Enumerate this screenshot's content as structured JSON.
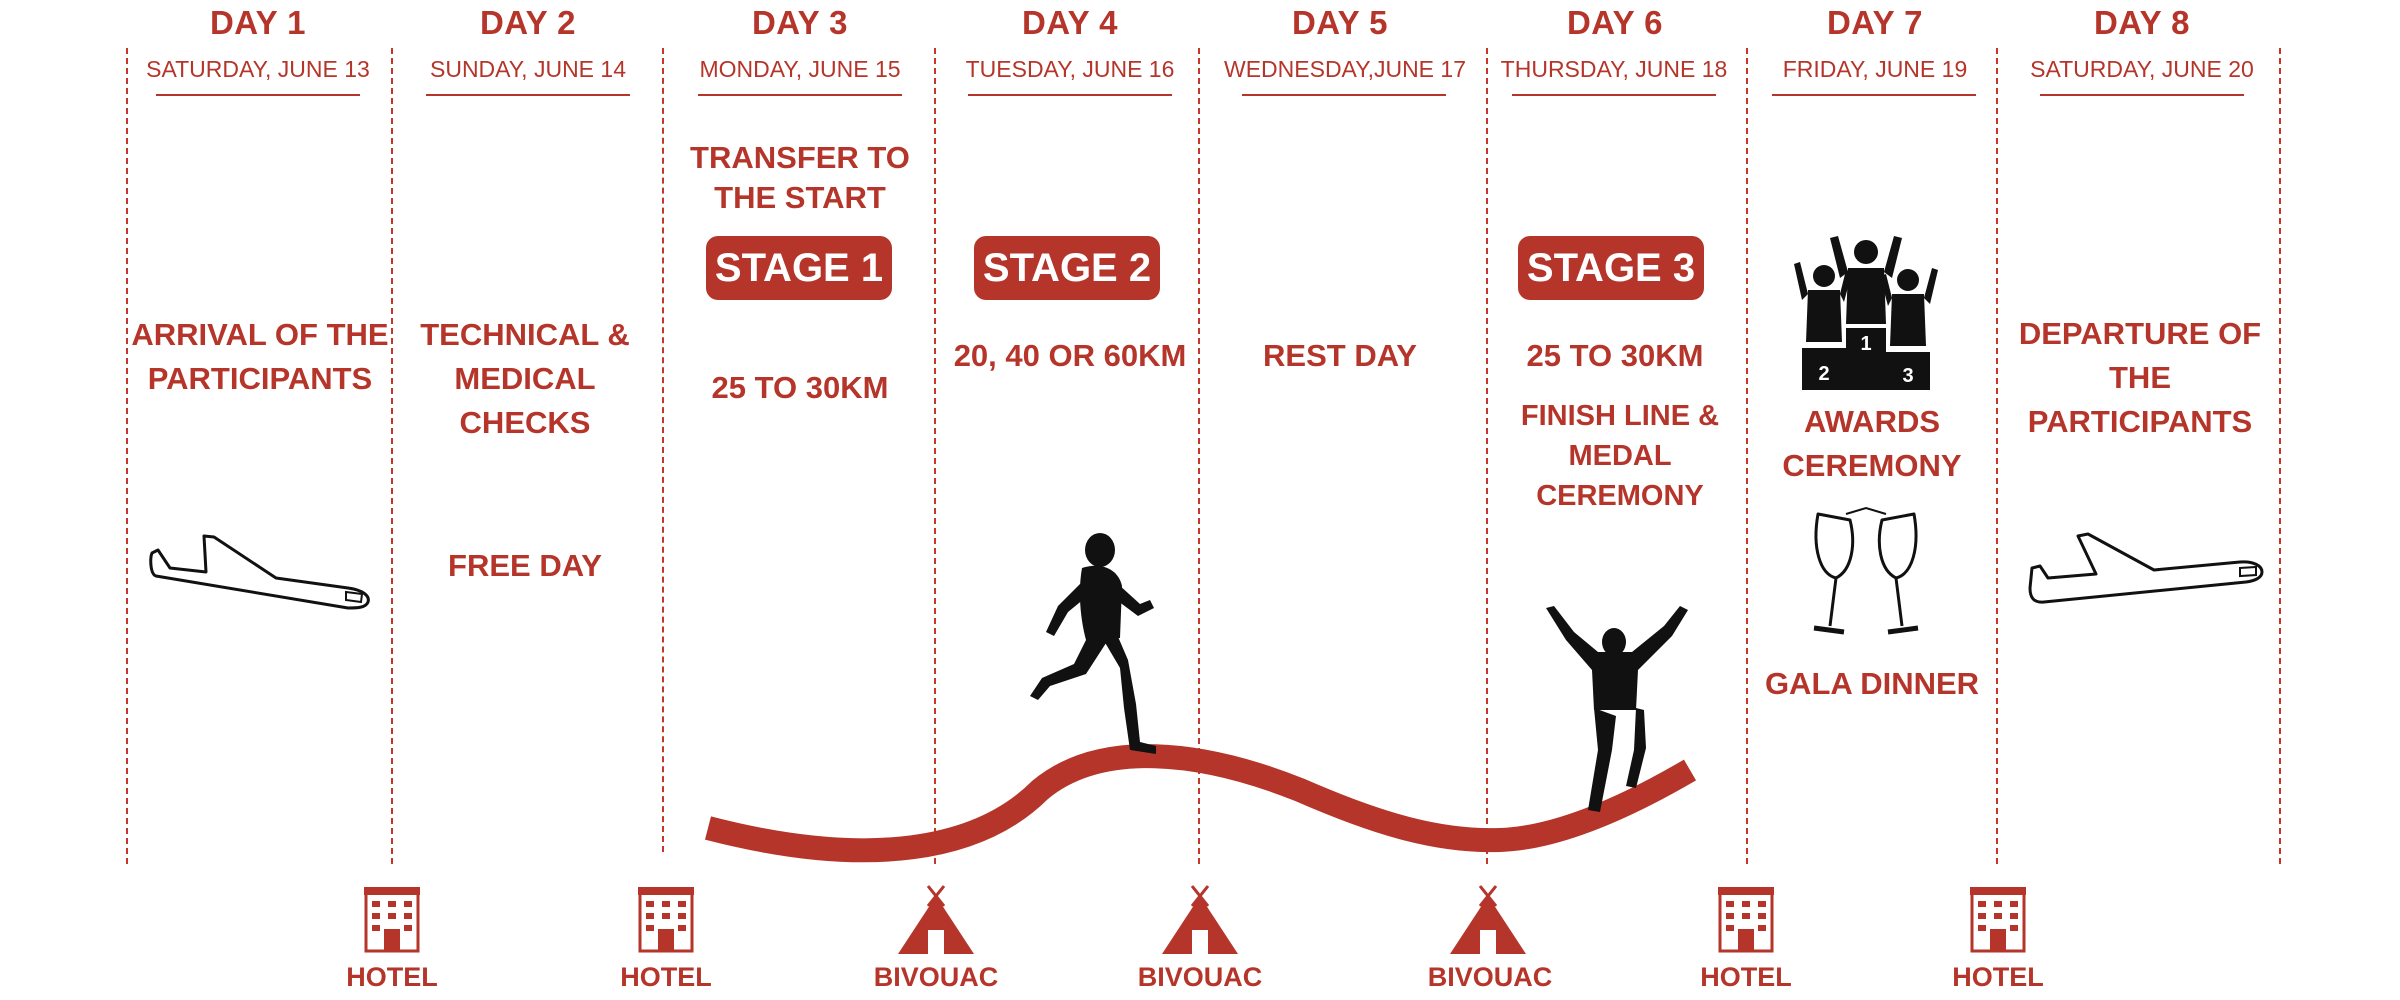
{
  "days": [
    {
      "title": "DAY 1",
      "date": "SATURDAY, JUNE 13"
    },
    {
      "title": "DAY 2",
      "date": "SUNDAY, JUNE 14"
    },
    {
      "title": "DAY 3",
      "date": "MONDAY, JUNE 15"
    },
    {
      "title": "DAY 4",
      "date": "TUESDAY, JUNE 16"
    },
    {
      "title": "DAY 5",
      "date": "WEDNESDAY,JUNE 17"
    },
    {
      "title": "DAY 6",
      "date": "THURSDAY, JUNE 18"
    },
    {
      "title": "DAY 7",
      "date": "FRIDAY, JUNE 19"
    },
    {
      "title": "DAY 8",
      "date": "SATURDAY, JUNE 20"
    }
  ],
  "activities": {
    "day1": "ARRIVAL OF THE PARTICIPANTS",
    "day2_main": "TECHNICAL & MEDICAL CHECKS",
    "day2_extra": "FREE DAY",
    "day3_transfer": "TRANSFER TO THE START",
    "day3_distance": "25 TO 30KM",
    "day4_distance": "20, 40 OR 60KM",
    "day5": "REST DAY",
    "day6_distance": "25 TO 30KM",
    "day6_finish": "FINISH LINE & MEDAL CEREMONY",
    "day7_awards": "AWARDS CEREMONY",
    "day7_gala": "GALA DINNER",
    "day8": "DEPARTURE OF THE PARTICIPANTS"
  },
  "stages": [
    "STAGE 1",
    "STAGE 2",
    "STAGE 3"
  ],
  "podium_numbers": [
    "1",
    "2",
    "3"
  ],
  "locations": [
    "HOTEL",
    "HOTEL",
    "BIVOUAC",
    "BIVOUAC",
    "BIVOUAC",
    "HOTEL",
    "HOTEL"
  ],
  "colors": {
    "accent": "#b5352a",
    "silhouette": "#111111"
  },
  "icons": [
    "airplane-icon",
    "runner-icon",
    "finisher-icon",
    "podium-icon",
    "champagne-icon",
    "hotel-icon",
    "tent-icon"
  ]
}
